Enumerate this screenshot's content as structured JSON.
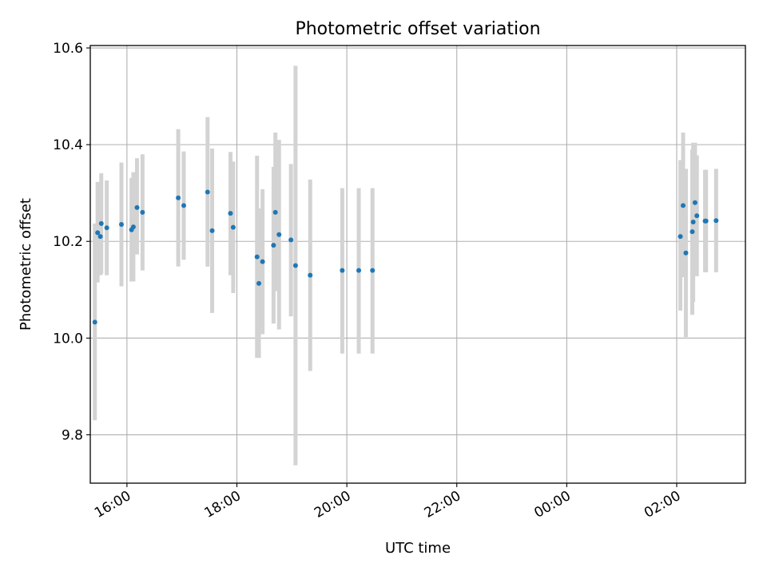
{
  "chart_data": {
    "type": "scatter",
    "title": "Photometric offset variation",
    "xlabel": "UTC time",
    "ylabel": "Photometric offset",
    "x_axis_type": "time",
    "xlim": [
      "15:20",
      "03:15"
    ],
    "ylim": [
      9.7,
      10.605
    ],
    "x_ticks": [
      "16:00",
      "18:00",
      "20:00",
      "22:00",
      "00:00",
      "02:00"
    ],
    "y_ticks": [
      9.8,
      10.0,
      10.2,
      10.4,
      10.6
    ],
    "y_tick_labels": [
      "9.8",
      "10.0",
      "10.2",
      "10.4",
      "10.6"
    ],
    "grid": true,
    "legend": "none",
    "marker_color": "#1f77b4",
    "errorbar_color": "#d3d3d3",
    "points": [
      {
        "x": "15:25",
        "y": 10.033,
        "ylow": 9.83,
        "yhigh": 10.237
      },
      {
        "x": "15:28",
        "y": 10.218,
        "ylow": 10.115,
        "yhigh": 10.323
      },
      {
        "x": "15:31",
        "y": 10.21,
        "ylow": 10.13,
        "yhigh": 10.29
      },
      {
        "x": "15:32",
        "y": 10.237,
        "ylow": 10.133,
        "yhigh": 10.341
      },
      {
        "x": "15:38",
        "y": 10.228,
        "ylow": 10.13,
        "yhigh": 10.326
      },
      {
        "x": "15:54",
        "y": 10.235,
        "ylow": 10.107,
        "yhigh": 10.363
      },
      {
        "x": "16:05",
        "y": 10.224,
        "ylow": 10.117,
        "yhigh": 10.331
      },
      {
        "x": "16:07",
        "y": 10.23,
        "ylow": 10.117,
        "yhigh": 10.343
      },
      {
        "x": "16:11",
        "y": 10.27,
        "ylow": 10.173,
        "yhigh": 10.372
      },
      {
        "x": "16:17",
        "y": 10.26,
        "ylow": 10.14,
        "yhigh": 10.38
      },
      {
        "x": "16:56",
        "y": 10.29,
        "ylow": 10.148,
        "yhigh": 10.432
      },
      {
        "x": "17:02",
        "y": 10.274,
        "ylow": 10.162,
        "yhigh": 10.386
      },
      {
        "x": "17:28",
        "y": 10.302,
        "ylow": 10.148,
        "yhigh": 10.457
      },
      {
        "x": "17:33",
        "y": 10.222,
        "ylow": 10.052,
        "yhigh": 10.392
      },
      {
        "x": "17:53",
        "y": 10.258,
        "ylow": 10.13,
        "yhigh": 10.385
      },
      {
        "x": "17:56",
        "y": 10.229,
        "ylow": 10.093,
        "yhigh": 10.365
      },
      {
        "x": "18:22",
        "y": 10.168,
        "ylow": 9.959,
        "yhigh": 10.377
      },
      {
        "x": "18:24",
        "y": 10.113,
        "ylow": 9.959,
        "yhigh": 10.268
      },
      {
        "x": "18:28",
        "y": 10.158,
        "ylow": 10.008,
        "yhigh": 10.308
      },
      {
        "x": "18:40",
        "y": 10.192,
        "ylow": 10.03,
        "yhigh": 10.354
      },
      {
        "x": "18:42",
        "y": 10.26,
        "ylow": 10.097,
        "yhigh": 10.425
      },
      {
        "x": "18:46",
        "y": 10.214,
        "ylow": 10.018,
        "yhigh": 10.41
      },
      {
        "x": "18:59",
        "y": 10.203,
        "ylow": 10.045,
        "yhigh": 10.36
      },
      {
        "x": "19:04",
        "y": 10.15,
        "ylow": 9.737,
        "yhigh": 10.563
      },
      {
        "x": "19:20",
        "y": 10.13,
        "ylow": 9.932,
        "yhigh": 10.328
      },
      {
        "x": "19:55",
        "y": 10.14,
        "ylow": 9.968,
        "yhigh": 10.31
      },
      {
        "x": "20:13",
        "y": 10.14,
        "ylow": 9.968,
        "yhigh": 10.31
      },
      {
        "x": "20:28",
        "y": 10.14,
        "ylow": 9.968,
        "yhigh": 10.31
      },
      {
        "x": "02:04",
        "y": 10.21,
        "ylow": 10.057,
        "yhigh": 10.368
      },
      {
        "x": "02:07",
        "y": 10.274,
        "ylow": 10.126,
        "yhigh": 10.425
      },
      {
        "x": "02:10",
        "y": 10.176,
        "ylow": 10.002,
        "yhigh": 10.35
      },
      {
        "x": "02:17",
        "y": 10.22,
        "ylow": 10.048,
        "yhigh": 10.39
      },
      {
        "x": "02:18",
        "y": 10.24,
        "ylow": 10.075,
        "yhigh": 10.404
      },
      {
        "x": "02:20",
        "y": 10.28,
        "ylow": 10.155,
        "yhigh": 10.404
      },
      {
        "x": "02:22",
        "y": 10.253,
        "ylow": 10.128,
        "yhigh": 10.378
      },
      {
        "x": "02:31",
        "y": 10.242,
        "ylow": 10.136,
        "yhigh": 10.348
      },
      {
        "x": "02:32",
        "y": 10.242,
        "ylow": 10.136,
        "yhigh": 10.348
      },
      {
        "x": "02:43",
        "y": 10.243,
        "ylow": 10.136,
        "yhigh": 10.35
      }
    ]
  }
}
